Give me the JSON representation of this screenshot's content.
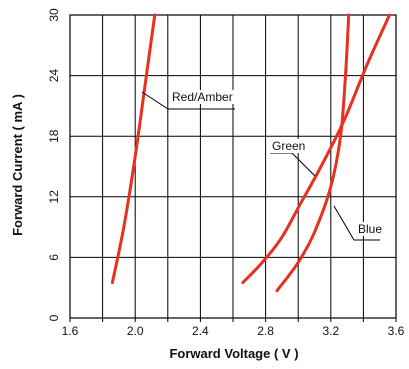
{
  "chart_data": {
    "type": "line",
    "title": "",
    "xlabel": "Forward Voltage ( V )",
    "ylabel": "Forward Current ( mA )",
    "xlim": [
      1.6,
      3.6
    ],
    "ylim": [
      0,
      30
    ],
    "x_ticks": [
      "1.6",
      "2.0",
      "2.4",
      "2.8",
      "3.2",
      "3.6"
    ],
    "y_ticks": [
      "0",
      "6",
      "12",
      "18",
      "24",
      "30"
    ],
    "grid": true,
    "legend": "none",
    "series": [
      {
        "name": "Red/Amber",
        "color": "#e8301f",
        "points": [
          [
            1.86,
            3.5
          ],
          [
            1.93,
            9
          ],
          [
            2.0,
            16
          ],
          [
            2.06,
            23
          ],
          [
            2.12,
            30
          ]
        ]
      },
      {
        "name": "Green",
        "color": "#e8301f",
        "points": [
          [
            2.66,
            3.5
          ],
          [
            2.78,
            5.5
          ],
          [
            2.9,
            8
          ],
          [
            3.02,
            11.5
          ],
          [
            3.14,
            15
          ],
          [
            3.28,
            19.5
          ],
          [
            3.42,
            25
          ],
          [
            3.56,
            30
          ]
        ]
      },
      {
        "name": "Blue",
        "color": "#e8301f",
        "points": [
          [
            2.87,
            2.7
          ],
          [
            3.0,
            5.5
          ],
          [
            3.1,
            8.5
          ],
          [
            3.2,
            13
          ],
          [
            3.26,
            18
          ],
          [
            3.29,
            24
          ],
          [
            3.31,
            30
          ]
        ]
      }
    ],
    "annotations": [
      {
        "text": "Red/Amber",
        "series": "Red/Amber"
      },
      {
        "text": "Green",
        "series": "Green"
      },
      {
        "text": "Blue",
        "series": "Blue"
      }
    ]
  }
}
